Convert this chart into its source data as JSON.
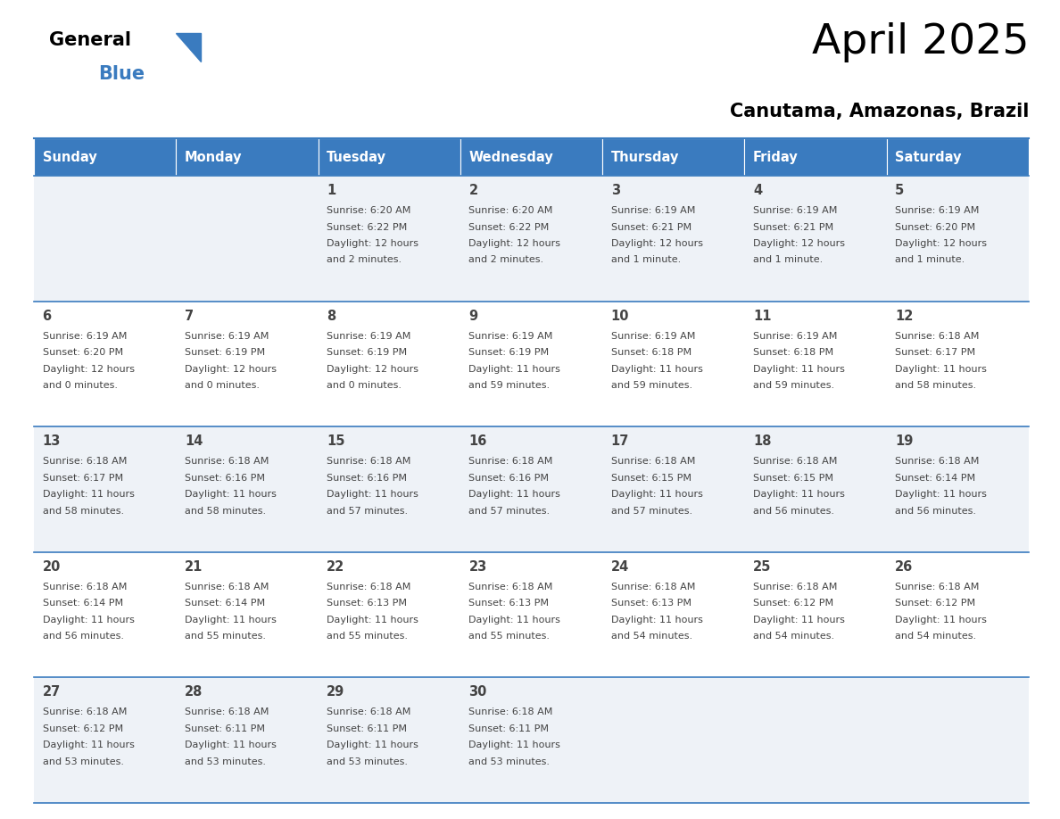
{
  "title": "April 2025",
  "subtitle": "Canutama, Amazonas, Brazil",
  "days_of_week": [
    "Sunday",
    "Monday",
    "Tuesday",
    "Wednesday",
    "Thursday",
    "Friday",
    "Saturday"
  ],
  "header_bg": "#3a7bbf",
  "header_text": "#ffffff",
  "row_bg_light": "#eef2f7",
  "row_bg_white": "#ffffff",
  "border_color": "#3a7bbf",
  "text_color": "#444444",
  "calendar_data": [
    [
      {
        "day": null,
        "sunrise": null,
        "sunset": null,
        "daylight": null
      },
      {
        "day": null,
        "sunrise": null,
        "sunset": null,
        "daylight": null
      },
      {
        "day": 1,
        "sunrise": "6:20 AM",
        "sunset": "6:22 PM",
        "daylight": "12 hours\nand 2 minutes."
      },
      {
        "day": 2,
        "sunrise": "6:20 AM",
        "sunset": "6:22 PM",
        "daylight": "12 hours\nand 2 minutes."
      },
      {
        "day": 3,
        "sunrise": "6:19 AM",
        "sunset": "6:21 PM",
        "daylight": "12 hours\nand 1 minute."
      },
      {
        "day": 4,
        "sunrise": "6:19 AM",
        "sunset": "6:21 PM",
        "daylight": "12 hours\nand 1 minute."
      },
      {
        "day": 5,
        "sunrise": "6:19 AM",
        "sunset": "6:20 PM",
        "daylight": "12 hours\nand 1 minute."
      }
    ],
    [
      {
        "day": 6,
        "sunrise": "6:19 AM",
        "sunset": "6:20 PM",
        "daylight": "12 hours\nand 0 minutes."
      },
      {
        "day": 7,
        "sunrise": "6:19 AM",
        "sunset": "6:19 PM",
        "daylight": "12 hours\nand 0 minutes."
      },
      {
        "day": 8,
        "sunrise": "6:19 AM",
        "sunset": "6:19 PM",
        "daylight": "12 hours\nand 0 minutes."
      },
      {
        "day": 9,
        "sunrise": "6:19 AM",
        "sunset": "6:19 PM",
        "daylight": "11 hours\nand 59 minutes."
      },
      {
        "day": 10,
        "sunrise": "6:19 AM",
        "sunset": "6:18 PM",
        "daylight": "11 hours\nand 59 minutes."
      },
      {
        "day": 11,
        "sunrise": "6:19 AM",
        "sunset": "6:18 PM",
        "daylight": "11 hours\nand 59 minutes."
      },
      {
        "day": 12,
        "sunrise": "6:18 AM",
        "sunset": "6:17 PM",
        "daylight": "11 hours\nand 58 minutes."
      }
    ],
    [
      {
        "day": 13,
        "sunrise": "6:18 AM",
        "sunset": "6:17 PM",
        "daylight": "11 hours\nand 58 minutes."
      },
      {
        "day": 14,
        "sunrise": "6:18 AM",
        "sunset": "6:16 PM",
        "daylight": "11 hours\nand 58 minutes."
      },
      {
        "day": 15,
        "sunrise": "6:18 AM",
        "sunset": "6:16 PM",
        "daylight": "11 hours\nand 57 minutes."
      },
      {
        "day": 16,
        "sunrise": "6:18 AM",
        "sunset": "6:16 PM",
        "daylight": "11 hours\nand 57 minutes."
      },
      {
        "day": 17,
        "sunrise": "6:18 AM",
        "sunset": "6:15 PM",
        "daylight": "11 hours\nand 57 minutes."
      },
      {
        "day": 18,
        "sunrise": "6:18 AM",
        "sunset": "6:15 PM",
        "daylight": "11 hours\nand 56 minutes."
      },
      {
        "day": 19,
        "sunrise": "6:18 AM",
        "sunset": "6:14 PM",
        "daylight": "11 hours\nand 56 minutes."
      }
    ],
    [
      {
        "day": 20,
        "sunrise": "6:18 AM",
        "sunset": "6:14 PM",
        "daylight": "11 hours\nand 56 minutes."
      },
      {
        "day": 21,
        "sunrise": "6:18 AM",
        "sunset": "6:14 PM",
        "daylight": "11 hours\nand 55 minutes."
      },
      {
        "day": 22,
        "sunrise": "6:18 AM",
        "sunset": "6:13 PM",
        "daylight": "11 hours\nand 55 minutes."
      },
      {
        "day": 23,
        "sunrise": "6:18 AM",
        "sunset": "6:13 PM",
        "daylight": "11 hours\nand 55 minutes."
      },
      {
        "day": 24,
        "sunrise": "6:18 AM",
        "sunset": "6:13 PM",
        "daylight": "11 hours\nand 54 minutes."
      },
      {
        "day": 25,
        "sunrise": "6:18 AM",
        "sunset": "6:12 PM",
        "daylight": "11 hours\nand 54 minutes."
      },
      {
        "day": 26,
        "sunrise": "6:18 AM",
        "sunset": "6:12 PM",
        "daylight": "11 hours\nand 54 minutes."
      }
    ],
    [
      {
        "day": 27,
        "sunrise": "6:18 AM",
        "sunset": "6:12 PM",
        "daylight": "11 hours\nand 53 minutes."
      },
      {
        "day": 28,
        "sunrise": "6:18 AM",
        "sunset": "6:11 PM",
        "daylight": "11 hours\nand 53 minutes."
      },
      {
        "day": 29,
        "sunrise": "6:18 AM",
        "sunset": "6:11 PM",
        "daylight": "11 hours\nand 53 minutes."
      },
      {
        "day": 30,
        "sunrise": "6:18 AM",
        "sunset": "6:11 PM",
        "daylight": "11 hours\nand 53 minutes."
      },
      {
        "day": null,
        "sunrise": null,
        "sunset": null,
        "daylight": null
      },
      {
        "day": null,
        "sunrise": null,
        "sunset": null,
        "daylight": null
      },
      {
        "day": null,
        "sunrise": null,
        "sunset": null,
        "daylight": null
      }
    ]
  ]
}
